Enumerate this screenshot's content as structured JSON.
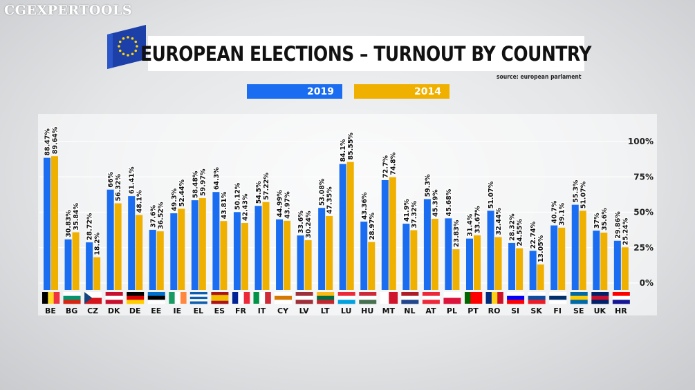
{
  "watermark": "CGEXPERTOOLS",
  "title": "EUROPEAN ELECTIONS – TURNOUT BY COUNTRY",
  "source": "source: european parlament",
  "colors": {
    "s2019": "#1a6df0",
    "s2014": "#f0b000"
  },
  "chart_data": {
    "type": "bar",
    "title": "EUROPEAN ELECTIONS – TURNOUT BY COUNTRY",
    "xlabel": "",
    "ylabel": "",
    "ylim": [
      0,
      100
    ],
    "yticks": [
      "0%",
      "25%",
      "50%",
      "75%",
      "100%"
    ],
    "ytick_values": [
      0,
      25,
      50,
      75,
      100
    ],
    "legend_position": "top",
    "categories": [
      "BE",
      "BG",
      "CZ",
      "DK",
      "DE",
      "EE",
      "IE",
      "EL",
      "ES",
      "FR",
      "IT",
      "CY",
      "LV",
      "LT",
      "LU",
      "HU",
      "MT",
      "NL",
      "AT",
      "PL",
      "PT",
      "RO",
      "SI",
      "SK",
      "FI",
      "SE",
      "UK",
      "HR"
    ],
    "series": [
      {
        "name": "2019",
        "values": [
          88.47,
          30.83,
          28.72,
          66,
          61.41,
          37.6,
          49.3,
          58.48,
          64.3,
          50.12,
          54.5,
          44.99,
          33.6,
          53.08,
          84.1,
          43.36,
          72.7,
          41.9,
          59.3,
          45.68,
          31.4,
          51.07,
          28.32,
          22.74,
          40.7,
          55.3,
          37,
          29.86
        ],
        "labels": [
          "88.47%",
          "30.83%",
          "28.72%",
          "66%",
          "61.41%",
          "37.6%",
          "49.3%",
          "58.48%",
          "64.3%",
          "50.12%",
          "54.5%",
          "44.99%",
          "33.6%",
          "53.08%",
          "84.1%",
          "43.36%",
          "72.7%",
          "41.9%",
          "59.3%",
          "45.68%",
          "31.4%",
          "51.07%",
          "28.32%",
          "22.74%",
          "40.7%",
          "55.3%",
          "37%",
          "29.86%"
        ]
      },
      {
        "name": "2014",
        "values": [
          89.64,
          35.84,
          18.2,
          56.32,
          48.1,
          36.52,
          52.44,
          59.97,
          43.81,
          42.43,
          57.22,
          43.97,
          30.24,
          47.35,
          85.55,
          28.97,
          74.8,
          37.32,
          45.39,
          23.83,
          33.67,
          32.44,
          24.55,
          13.05,
          39.1,
          51.07,
          35.6,
          25.24
        ],
        "labels": [
          "89.64%",
          "35.84%",
          "18.2%",
          "56.32%",
          "48.1%",
          "36.52%",
          "52.44%",
          "59.97%",
          "43.81%",
          "42.43%",
          "57.22%",
          "43.97%",
          "30.24%",
          "47.35%",
          "85.55%",
          "28.97%",
          "74.8%",
          "37.32%",
          "45.39%",
          "23.83%",
          "33.67%",
          "32.44%",
          "24.55%",
          "13.05%",
          "39.1%",
          "51.07%",
          "35.6%",
          "25.24%"
        ]
      }
    ]
  },
  "flags": [
    {
      "dir": "v",
      "c": [
        "#000000",
        "#fdda24",
        "#ef3340"
      ]
    },
    {
      "dir": "h",
      "c": [
        "#ffffff",
        "#00966e",
        "#d62612"
      ]
    },
    {
      "dir": "h",
      "c": [
        "#ffffff",
        "#d7141a"
      ],
      "tri": "#11457e"
    },
    {
      "dir": "h",
      "c": [
        "#c8102e",
        "#ffffff",
        "#c8102e"
      ]
    },
    {
      "dir": "h",
      "c": [
        "#000000",
        "#dd0000",
        "#ffce00"
      ]
    },
    {
      "dir": "h",
      "c": [
        "#0072ce",
        "#000000",
        "#ffffff"
      ]
    },
    {
      "dir": "v",
      "c": [
        "#169b62",
        "#ffffff",
        "#ff883e"
      ]
    },
    {
      "dir": "h",
      "c": [
        "#0d5eaf",
        "#ffffff",
        "#0d5eaf",
        "#ffffff",
        "#0d5eaf"
      ]
    },
    {
      "dir": "h",
      "c": [
        "#aa151b",
        "#f1bf00",
        "#f1bf00",
        "#aa151b"
      ]
    },
    {
      "dir": "v",
      "c": [
        "#002395",
        "#ffffff",
        "#ed2939"
      ]
    },
    {
      "dir": "v",
      "c": [
        "#009246",
        "#ffffff",
        "#ce2b37"
      ]
    },
    {
      "dir": "h",
      "c": [
        "#ffffff",
        "#d57800",
        "#ffffff"
      ]
    },
    {
      "dir": "h",
      "c": [
        "#9e3039",
        "#ffffff",
        "#9e3039"
      ]
    },
    {
      "dir": "h",
      "c": [
        "#fdb913",
        "#006a44",
        "#c1272d"
      ]
    },
    {
      "dir": "h",
      "c": [
        "#ed2939",
        "#ffffff",
        "#00a1de"
      ]
    },
    {
      "dir": "h",
      "c": [
        "#ce2939",
        "#ffffff",
        "#477050"
      ]
    },
    {
      "dir": "v",
      "c": [
        "#ffffff",
        "#cf142b"
      ]
    },
    {
      "dir": "h",
      "c": [
        "#ae1c28",
        "#ffffff",
        "#21468b"
      ]
    },
    {
      "dir": "h",
      "c": [
        "#ed2939",
        "#ffffff",
        "#ed2939"
      ]
    },
    {
      "dir": "h",
      "c": [
        "#ffffff",
        "#dc143c"
      ]
    },
    {
      "dir": "v",
      "c": [
        "#006600",
        "#ff0000",
        "#ff0000"
      ]
    },
    {
      "dir": "v",
      "c": [
        "#002b7f",
        "#fcd116",
        "#ce1126"
      ]
    },
    {
      "dir": "h",
      "c": [
        "#ffffff",
        "#0000ff",
        "#ff0000"
      ]
    },
    {
      "dir": "h",
      "c": [
        "#ffffff",
        "#0b4ea2",
        "#ee1c25"
      ]
    },
    {
      "dir": "h",
      "c": [
        "#ffffff",
        "#002f6c",
        "#ffffff"
      ]
    },
    {
      "dir": "h",
      "c": [
        "#006aa7",
        "#fecc00",
        "#006aa7"
      ]
    },
    {
      "dir": "h",
      "c": [
        "#012169",
        "#c8102e",
        "#012169"
      ]
    },
    {
      "dir": "h",
      "c": [
        "#ff0000",
        "#ffffff",
        "#171796"
      ]
    }
  ]
}
